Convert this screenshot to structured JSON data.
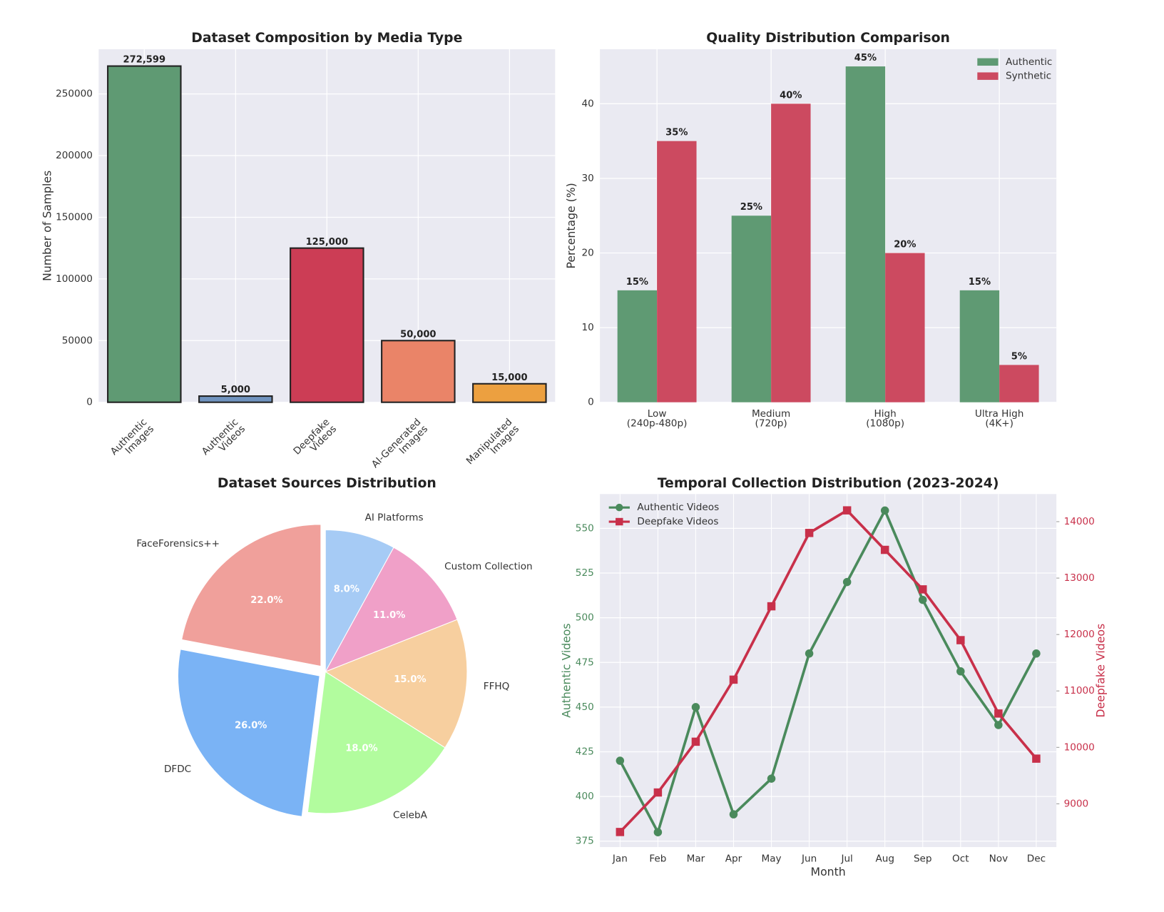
{
  "chart_data": [
    {
      "type": "bar",
      "title": "Dataset Composition by Media Type",
      "ylabel": "Number of Samples",
      "categories": [
        "Authentic\nImages",
        "Authentic\nVideos",
        "Deepfake\nVideos",
        "AI-Generated\nImages",
        "Manipulated\nImages"
      ],
      "values": [
        272599,
        5000,
        125000,
        50000,
        15000
      ],
      "value_labels": [
        "272,599",
        "5,000",
        "125,000",
        "50,000",
        "15,000"
      ],
      "colors": [
        "#5f9a73",
        "#7093bf",
        "#cc3d55",
        "#ea8468",
        "#eca040"
      ],
      "ylim": [
        0,
        286229
      ],
      "yticks": [
        0,
        50000,
        100000,
        150000,
        200000,
        250000
      ],
      "grid": true
    },
    {
      "type": "grouped-bar",
      "title": "Quality Distribution Comparison",
      "ylabel": "Percentage (%)",
      "categories": [
        "Low\n(240p-480p)",
        "Medium\n(720p)",
        "High\n(1080p)",
        "Ultra High\n(4K+)"
      ],
      "series": [
        {
          "name": "Authentic",
          "color": "#5f9a73",
          "values": [
            15,
            25,
            45,
            15
          ],
          "value_labels": [
            "15%",
            "25%",
            "45%",
            "15%"
          ]
        },
        {
          "name": "Synthetic",
          "color": "#cc4a60",
          "values": [
            35,
            40,
            20,
            5
          ],
          "value_labels": [
            "35%",
            "40%",
            "20%",
            "5%"
          ]
        }
      ],
      "ylim": [
        0,
        47.3
      ],
      "yticks": [
        0,
        10,
        20,
        30,
        40
      ],
      "grid": true,
      "legend": "upper-right"
    },
    {
      "type": "pie",
      "title": "Dataset Sources Distribution",
      "categories": [
        "FaceForensics++",
        "DFDC",
        "CelebA",
        "FFHQ",
        "Custom Collection",
        "AI Platforms"
      ],
      "values": [
        22,
        26,
        18,
        15,
        11,
        8
      ],
      "value_labels": [
        "22.0%",
        "26.0%",
        "18.0%",
        "15.0%",
        "11.0%",
        "8.0%"
      ],
      "colors": [
        "#f0a09b",
        "#7ab3f5",
        "#b2fc9e",
        "#f7cf9f",
        "#f0a0c8",
        "#a6cbf5"
      ],
      "explode": [
        0.05,
        0.05,
        0,
        0,
        0,
        0
      ],
      "start_angle": 90
    },
    {
      "type": "dual-line",
      "title": "Temporal Collection Distribution (2023-2024)",
      "xlabel": "Month",
      "ylabel": "Authentic Videos",
      "y2label": "Deepfake Videos",
      "categories": [
        "Jan",
        "Feb",
        "Mar",
        "Apr",
        "May",
        "Jun",
        "Jul",
        "Aug",
        "Sep",
        "Oct",
        "Nov",
        "Dec"
      ],
      "series": [
        {
          "name": "Authentic Videos",
          "color": "#4a8a5c",
          "marker": "circle",
          "values": [
            420,
            380,
            450,
            390,
            410,
            480,
            520,
            560,
            510,
            470,
            440,
            480
          ]
        },
        {
          "name": "Deepfake Videos",
          "color": "#c8304a",
          "marker": "square",
          "axis": "y2",
          "values": [
            8500,
            9200,
            10100,
            11200,
            12500,
            13800,
            14200,
            13500,
            12800,
            11900,
            10600,
            9800
          ]
        }
      ],
      "ylim": [
        371.7,
        569.2
      ],
      "yticks": [
        375,
        400,
        425,
        450,
        475,
        500,
        525,
        550
      ],
      "y2lim": [
        8233,
        14489
      ],
      "y2ticks": [
        9000,
        10000,
        11000,
        12000,
        13000,
        14000
      ],
      "grid": true,
      "legend": "upper-left"
    }
  ]
}
